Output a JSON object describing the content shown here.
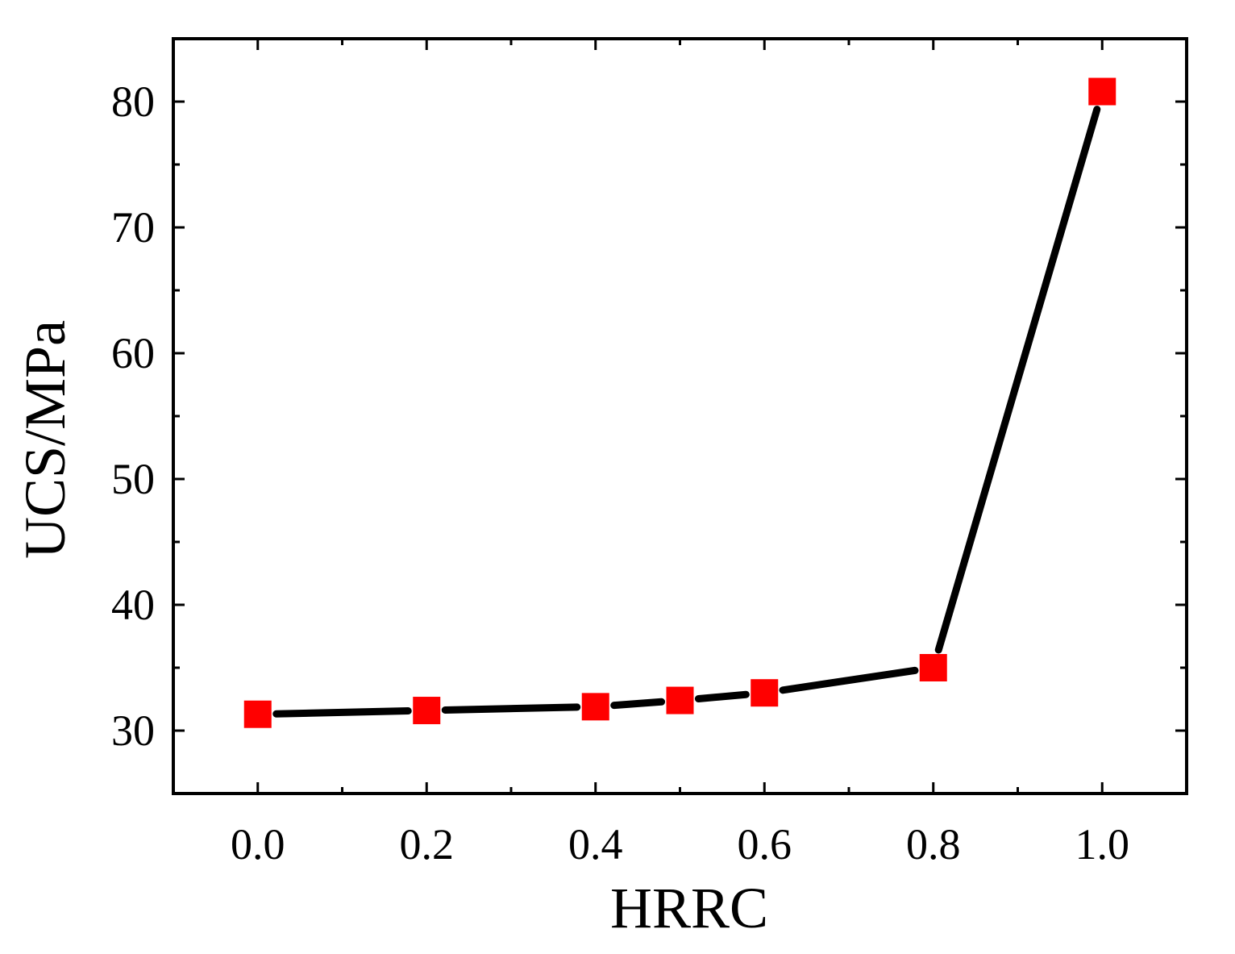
{
  "chart_data": {
    "type": "line",
    "title": "",
    "xlabel": "HRRC",
    "ylabel": "UCS/MPa",
    "xlim": [
      -0.1,
      1.1
    ],
    "ylim": [
      25,
      85
    ],
    "x_ticks": [
      0.0,
      0.2,
      0.4,
      0.6,
      0.8,
      1.0
    ],
    "x_tick_labels": [
      "0.0",
      "0.2",
      "0.4",
      "0.6",
      "0.8",
      "1.0"
    ],
    "x_minor_ticks": [
      0.1,
      0.3,
      0.5,
      0.7,
      0.9
    ],
    "y_ticks": [
      30,
      40,
      50,
      60,
      70,
      80
    ],
    "y_tick_labels": [
      "30",
      "40",
      "50",
      "60",
      "70",
      "80"
    ],
    "y_minor_ticks": [
      35,
      45,
      55,
      65,
      75
    ],
    "grid": false,
    "legend": false,
    "series": [
      {
        "x": [
          0.0,
          0.2,
          0.4,
          0.5,
          0.6,
          0.8,
          1.0
        ],
        "y": [
          31.3,
          31.6,
          31.9,
          32.4,
          33.0,
          35.0,
          80.8
        ],
        "line_color": "#000000",
        "marker": "square",
        "marker_color": "#ff0000"
      }
    ]
  }
}
